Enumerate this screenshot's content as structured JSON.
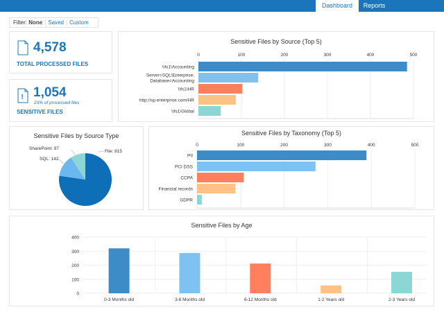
{
  "nav": {
    "tabs": [
      {
        "label": "Dashboard",
        "active": true
      },
      {
        "label": "Reports",
        "active": false
      }
    ]
  },
  "filter": {
    "label": "Filter:",
    "none": "None",
    "saved": "Saved",
    "custom": "Custom"
  },
  "stats": {
    "total": {
      "value": "4,578",
      "label": "TOTAL PROCESSED FILES",
      "icon": "file-icon"
    },
    "sensitive": {
      "value": "1,054",
      "sub": "23% of processed files",
      "label": "SENSITIVE FILES",
      "icon": "file-alert-icon"
    }
  },
  "colors": [
    "#3d8cc7",
    "#7fc2f1",
    "#ff7f5e",
    "#ffc285",
    "#8dd6d6"
  ],
  "chart_data": [
    {
      "type": "bar",
      "orientation": "horizontal",
      "title": "Sensitive Files by Source  (Top 5)",
      "categories": [
        "\\\\fs1\\Accounting",
        "Server=SQL\\Enterprise,|Database=Accounting",
        "\\\\fs1\\HR",
        "http://sp.enterprise.com/HR",
        "\\\\fs1\\Global"
      ],
      "values": [
        485,
        139,
        102,
        87,
        52
      ],
      "xlim": [
        0,
        500
      ],
      "ticks": [
        "0",
        "100",
        "200",
        "300",
        "400",
        "500"
      ],
      "grid": true
    },
    {
      "type": "pie",
      "title": "Sensitive Files by Source Type",
      "labels": [
        "File: 815",
        "SQL: 142",
        "SharePoint: 97"
      ],
      "values": [
        815,
        142,
        97
      ],
      "colors": [
        "#0e6eb8",
        "#6bb8ee",
        "#8dd6d6"
      ]
    },
    {
      "type": "bar",
      "orientation": "horizontal",
      "title": "Sensitive Files by Taxonomy  (Top 5)",
      "categories": [
        "PII",
        "PCI DSS",
        "CCPA",
        "Financial records",
        "GDPR"
      ],
      "values": [
        389,
        272,
        107,
        88,
        11
      ],
      "xlim": [
        0,
        500
      ],
      "ticks": [
        "0",
        "100",
        "200",
        "300",
        "400",
        "500"
      ],
      "grid": true
    },
    {
      "type": "bar",
      "orientation": "vertical",
      "title": "Sensitive Files by Age",
      "categories": [
        "0-3 Months old",
        "3-6 Months old",
        "6-12 Months old",
        "1-2 Years old",
        "2-3 Years old"
      ],
      "values": [
        320,
        287,
        212,
        56,
        153
      ],
      "ylim": [
        0,
        400
      ],
      "ticks": [
        "0",
        "100",
        "200",
        "300",
        "400"
      ],
      "grid": true
    }
  ]
}
